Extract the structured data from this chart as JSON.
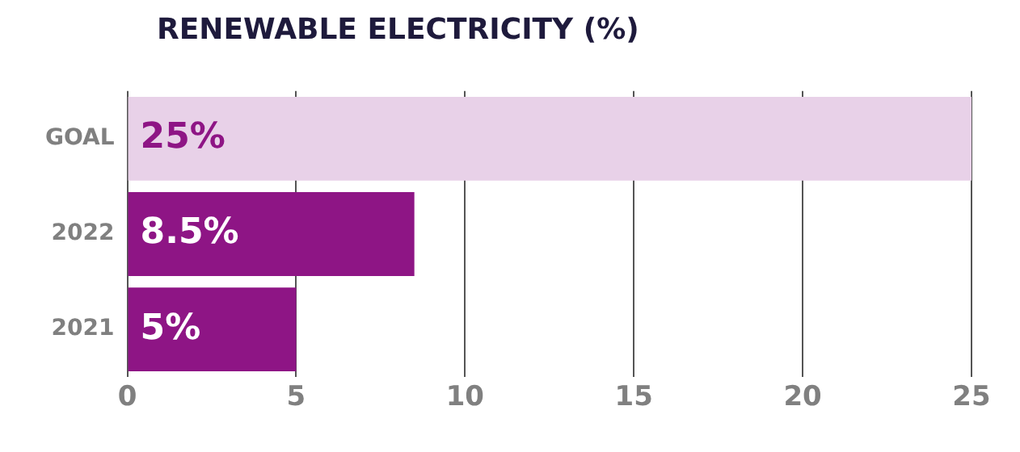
{
  "chart_data": {
    "type": "bar",
    "orientation": "horizontal",
    "title": "RENEWABLE ELECTRICITY (%)",
    "categories": [
      "GOAL",
      "2022",
      "2021"
    ],
    "values": [
      25,
      8.5,
      5
    ],
    "colors": [
      "#e8d1e8",
      "#8e1585",
      "#8e1585"
    ],
    "value_labels": [
      "25%",
      "8.5%",
      "5%"
    ],
    "xlim": [
      0,
      25
    ],
    "xticks": [
      0,
      5,
      10,
      15,
      20,
      25
    ],
    "grid": "x"
  }
}
